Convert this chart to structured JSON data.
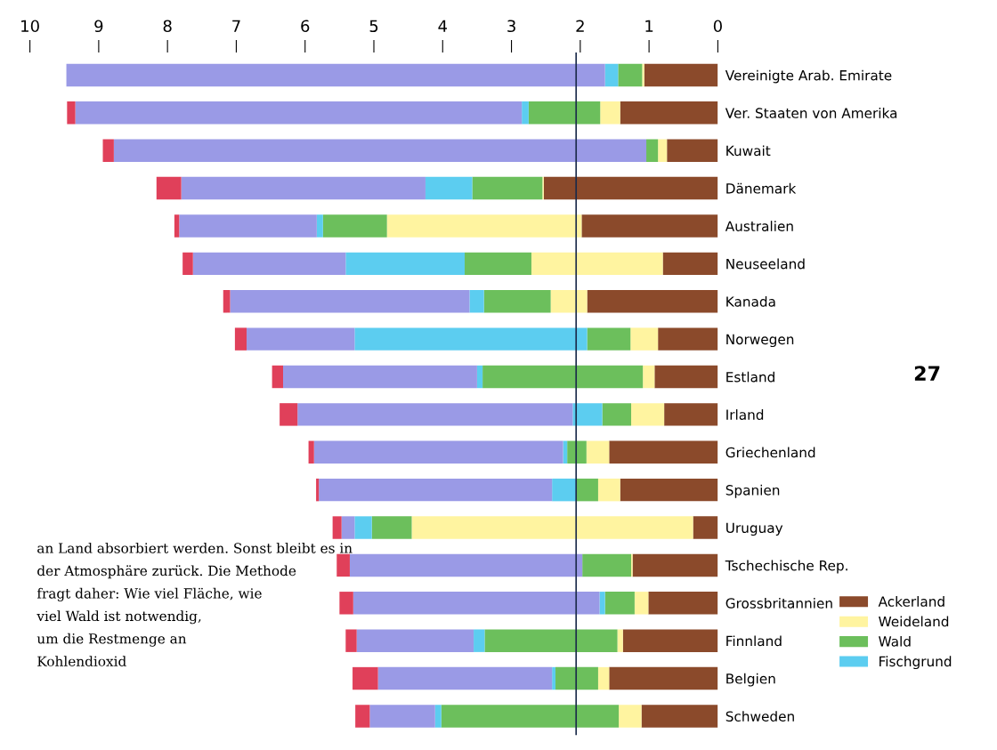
{
  "chart_data": {
    "type": "bar",
    "orientation": "horizontal",
    "stacked": true,
    "categories": [
      "Vereinigte Arab. Emirate",
      "Ver. Staaten von Amerika",
      "Kuwait",
      "Dänemark",
      "Australien",
      "Neuseeland",
      "Kanada",
      "Norwegen",
      "Estland",
      "Irland",
      "Griechenland",
      "Spanien",
      "Uruguay",
      "Tschechische Rep.",
      "Grossbritannien",
      "Finnland",
      "Belgien",
      "Schweden"
    ],
    "series": [
      {
        "name": "Ackerland",
        "color": "#8b4a2b",
        "values": [
          1.07,
          1.42,
          0.74,
          2.53,
          1.98,
          0.8,
          1.9,
          0.87,
          0.92,
          0.78,
          1.58,
          1.42,
          0.36,
          1.24,
          1.01,
          1.38,
          1.58,
          1.11
        ]
      },
      {
        "name": "Weideland",
        "color": "#fff4a0",
        "values": [
          0.03,
          0.29,
          0.13,
          0.02,
          2.83,
          1.91,
          0.53,
          0.4,
          0.17,
          0.48,
          0.33,
          0.32,
          4.09,
          0.02,
          0.2,
          0.08,
          0.16,
          0.33
        ]
      },
      {
        "name": "Wald",
        "color": "#6cbf5c",
        "values": [
          0.35,
          1.04,
          0.17,
          1.02,
          0.93,
          0.97,
          0.97,
          0.63,
          2.33,
          0.42,
          0.28,
          0.32,
          0.58,
          0.71,
          0.43,
          1.93,
          0.62,
          2.58
        ]
      },
      {
        "name": "Fischgrund",
        "color": "#5ccdf0",
        "values": [
          0.19,
          0.1,
          0.0,
          0.68,
          0.09,
          1.73,
          0.21,
          3.38,
          0.08,
          0.43,
          0.06,
          0.35,
          0.25,
          0.0,
          0.08,
          0.16,
          0.05,
          0.09
        ]
      },
      {
        "color": "#9a9ae6",
        "values": [
          7.83,
          6.49,
          7.74,
          3.55,
          2.0,
          2.22,
          3.48,
          1.57,
          2.82,
          4.0,
          3.62,
          3.39,
          0.19,
          3.38,
          3.58,
          1.7,
          2.53,
          0.95
        ]
      },
      {
        "color": "#e0405a",
        "values": [
          0.0,
          0.12,
          0.16,
          0.36,
          0.07,
          0.15,
          0.1,
          0.17,
          0.16,
          0.26,
          0.08,
          0.04,
          0.13,
          0.19,
          0.2,
          0.16,
          0.37,
          0.21
        ]
      }
    ],
    "xlim": [
      10,
      0
    ],
    "xticks": [
      0,
      1,
      2,
      3,
      4,
      5,
      6,
      7,
      8,
      9,
      10
    ],
    "ref_lines": [
      {
        "axis": "x",
        "value": 2.06,
        "color": "#1a2a4a"
      }
    ],
    "legend": "right",
    "grid": false,
    "annotations": [
      "an Land absorbiert werden. Sonst bleibt es in\nder Atmosphäre zurück. Die Methode\nfragt daher: Wie viel Fläche, wie\nviel Wald ist notwendig,\num die Restmenge an\nKohlendioxid",
      "27"
    ]
  }
}
